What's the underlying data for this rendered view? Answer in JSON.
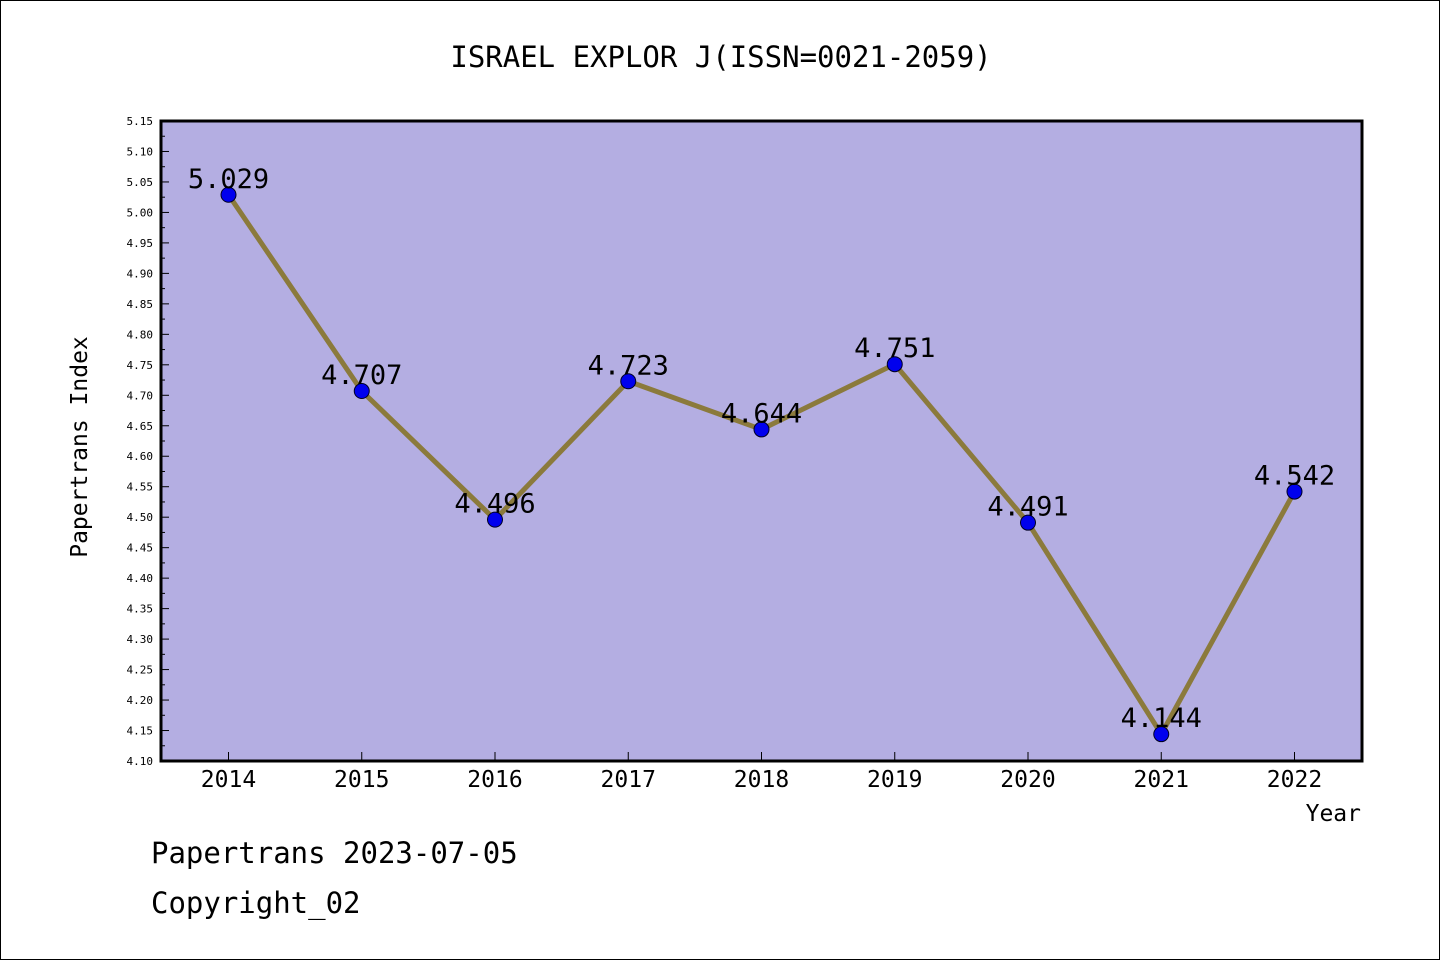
{
  "chart_data": {
    "type": "line",
    "title": "ISRAEL EXPLOR J(ISSN=0021-2059)",
    "xlabel": "Year",
    "ylabel": "Papertrans Index",
    "x": [
      "2014",
      "2015",
      "2016",
      "2017",
      "2018",
      "2019",
      "2020",
      "2021",
      "2022"
    ],
    "series": [
      {
        "values": [
          5.029,
          4.707,
          4.496,
          4.723,
          4.644,
          4.751,
          4.491,
          4.144,
          4.542
        ],
        "data_labels": [
          "5.029",
          "4.707",
          "4.496",
          "4.723",
          "4.644",
          "4.751",
          "4.491",
          "4.144",
          "4.542"
        ]
      }
    ],
    "ylim": [
      4.1,
      5.15
    ],
    "yticks": [
      "4.10",
      "4.15",
      "4.20",
      "4.25",
      "4.30",
      "4.35",
      "4.40",
      "4.45",
      "4.50",
      "4.55",
      "4.60",
      "4.65",
      "4.70",
      "4.75",
      "4.80",
      "4.85",
      "4.90",
      "4.95",
      "5.00",
      "5.05",
      "5.10",
      "5.15"
    ],
    "grid": false,
    "colors": {
      "plot_background": "#b4aee2",
      "line": "#8b7a3c",
      "marker": "#0000ee",
      "axes": "#000000"
    }
  },
  "footer": {
    "date_line": "Papertrans 2023-07-05",
    "copyright": "Copyright_02"
  }
}
